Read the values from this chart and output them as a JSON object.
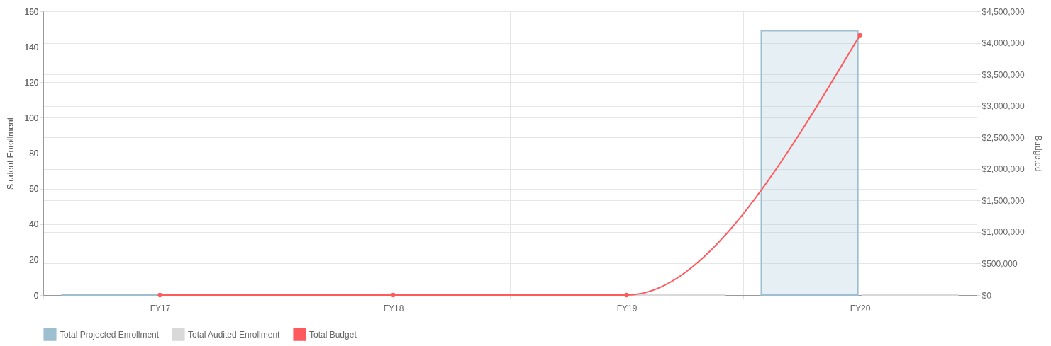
{
  "chart_data": {
    "type": "bar",
    "categories": [
      "FY17",
      "FY18",
      "FY19",
      "FY20"
    ],
    "ylabel": "Student Enrollment",
    "y2label": "Budgeted",
    "series": [
      {
        "name": "Total Projected Enrollment",
        "color": "#9dbfd0",
        "values": [
          0,
          0,
          0,
          149
        ]
      },
      {
        "name": "Total Audited Enrollment",
        "color": "#d9d9d9",
        "values": [
          0,
          0,
          0,
          0
        ]
      },
      {
        "name": "Total Budget",
        "type": "line",
        "axis": "y2",
        "color": "#ff5a5e",
        "values": [
          0,
          0,
          0,
          4120000
        ]
      }
    ],
    "ylim": [
      0,
      160
    ],
    "yticks": [
      0,
      20,
      40,
      60,
      80,
      100,
      120,
      140,
      160
    ],
    "y2lim": [
      0,
      4500000
    ],
    "y2ticks": [
      {
        "value": 0,
        "label": "$0"
      },
      {
        "value": 500000,
        "label": "$500,000"
      },
      {
        "value": 1000000,
        "label": "$1,000,000"
      },
      {
        "value": 1500000,
        "label": "$1,500,000"
      },
      {
        "value": 2000000,
        "label": "$2,000,000"
      },
      {
        "value": 2500000,
        "label": "$2,500,000"
      },
      {
        "value": 3000000,
        "label": "$3,000,000"
      },
      {
        "value": 3500000,
        "label": "$3,500,000"
      },
      {
        "value": 4000000,
        "label": "$4,000,000"
      },
      {
        "value": 4500000,
        "label": "$4,500,000"
      }
    ],
    "grid": true,
    "legend": "bottom",
    "marker": "circle",
    "line_style": "solid"
  }
}
